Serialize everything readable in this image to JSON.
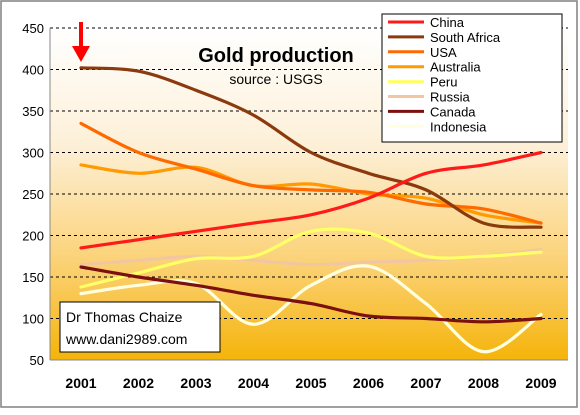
{
  "chart_data": {
    "type": "line",
    "title": "Gold production",
    "subtitle": "source : USGS",
    "xlabel": "",
    "ylabel": "",
    "x": [
      "2001",
      "2002",
      "2003",
      "2004",
      "2005",
      "2006",
      "2007",
      "2008",
      "2009"
    ],
    "ylim": [
      50,
      450
    ],
    "yticks": [
      50,
      100,
      150,
      200,
      250,
      300,
      350,
      400,
      450
    ],
    "grid": "horizontal dashed",
    "legend_position": "top-right",
    "series": [
      {
        "name": "China",
        "color": "#ff1a1a",
        "values": [
          185,
          195,
          205,
          215,
          225,
          245,
          275,
          285,
          300
        ]
      },
      {
        "name": "South Africa",
        "color": "#8b3a0e",
        "values": [
          402,
          398,
          375,
          345,
          300,
          275,
          255,
          215,
          210
        ]
      },
      {
        "name": "USA",
        "color": "#ff6a00",
        "values": [
          335,
          300,
          280,
          260,
          255,
          252,
          238,
          232,
          215
        ]
      },
      {
        "name": "Australia",
        "color": "#ff9a00",
        "values": [
          285,
          275,
          282,
          260,
          262,
          250,
          245,
          225,
          215
        ]
      },
      {
        "name": "Peru",
        "color": "#ffff66",
        "values": [
          138,
          155,
          172,
          175,
          205,
          203,
          175,
          175,
          180
        ]
      },
      {
        "name": "Russia",
        "color": "#f2c6a0",
        "values": [
          165,
          170,
          175,
          170,
          165,
          168,
          170,
          175,
          183
        ]
      },
      {
        "name": "Canada",
        "color": "#7a1010",
        "values": [
          162,
          150,
          140,
          128,
          118,
          103,
          100,
          96,
          100
        ]
      },
      {
        "name": "Indonesia",
        "color": "#ffffe0",
        "values": [
          130,
          140,
          142,
          93,
          140,
          163,
          118,
          60,
          105
        ]
      }
    ],
    "annotation": {
      "lines": [
        "Dr Thomas Chaize",
        "www.dani2989.com"
      ]
    },
    "marker": {
      "type": "arrow-down",
      "x": "2001",
      "color": "#ff0000"
    }
  }
}
